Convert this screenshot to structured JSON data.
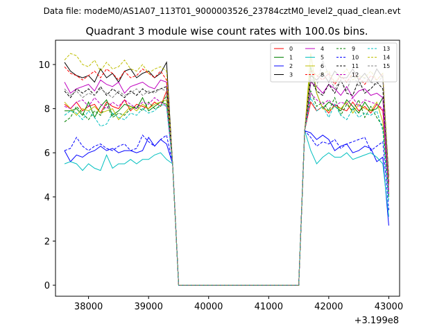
{
  "header": {
    "data_file_label": "Data file: modeM0/AS1A07_113T01_9000003526_23784cztM0_level2_quad_clean.evt"
  },
  "chart_data": {
    "type": "line",
    "title": "Quadrant 3 module wise count rates with 100.0s bins.",
    "xlabel": "",
    "ylabel": "",
    "x_offset_label": "+3.199e8",
    "xlim": [
      37450,
      43180
    ],
    "ylim": [
      -0.5,
      11.1
    ],
    "xticks": [
      38000,
      39000,
      40000,
      41000,
      42000,
      43000
    ],
    "xtick_labels": [
      "38000",
      "39000",
      "40000",
      "41000",
      "42000",
      "43000"
    ],
    "yticks": [
      0,
      2,
      4,
      6,
      8,
      10
    ],
    "ytick_labels": [
      "0",
      "2",
      "4",
      "6",
      "8",
      "10"
    ],
    "legend_position": "top-right",
    "x_before": [
      37600,
      37700,
      37800,
      37900,
      38000,
      38100,
      38200,
      38300,
      38400,
      38500,
      38600,
      38700,
      38800,
      38900,
      39000,
      39100,
      39200,
      39300
    ],
    "x_after": [
      41700,
      41800,
      41900,
      42000,
      42100,
      42200,
      42300,
      42400,
      42500,
      42600,
      42700,
      42800,
      42900,
      43000
    ],
    "gap_x": [
      39400,
      39500,
      41400,
      41500,
      41600
    ],
    "gap_values": [
      5.5,
      0,
      0,
      0,
      7.0
    ],
    "series": [
      {
        "name": "0",
        "color": "#ff0000",
        "dash": "solid",
        "before": [
          8.2,
          8.0,
          8.3,
          7.9,
          8.1,
          8.2,
          7.8,
          8.3,
          8.1,
          8.0,
          8.4,
          7.9,
          8.2,
          8.1,
          8.0,
          8.3,
          8.1,
          8.8
        ],
        "after": [
          8.3,
          7.9,
          8.1,
          7.8,
          8.2,
          8.0,
          7.9,
          8.3,
          7.9,
          8.1,
          7.8,
          8.2,
          7.9,
          4.6
        ]
      },
      {
        "name": "1",
        "color": "#008000",
        "dash": "solid",
        "before": [
          7.9,
          7.9,
          8.0,
          7.7,
          8.3,
          7.6,
          8.1,
          8.4,
          7.7,
          7.9,
          8.2,
          8.1,
          8.0,
          8.5,
          7.9,
          8.1,
          8.3,
          8.2
        ],
        "after": [
          9.9,
          8.7,
          8.0,
          8.3,
          8.1,
          7.9,
          8.4,
          8.1,
          7.8,
          8.3,
          7.9,
          8.0,
          8.5,
          4.0
        ]
      },
      {
        "name": "2",
        "color": "#0000ff",
        "dash": "solid",
        "before": [
          6.1,
          5.6,
          5.9,
          5.8,
          6.0,
          6.1,
          6.3,
          6.1,
          6.2,
          6.0,
          6.1,
          6.1,
          6.0,
          6.1,
          6.7,
          6.3,
          6.6,
          6.4
        ],
        "after": [
          6.9,
          6.6,
          6.8,
          6.6,
          6.1,
          6.3,
          6.4,
          6.0,
          6.1,
          6.3,
          6.2,
          5.6,
          5.8,
          2.7
        ]
      },
      {
        "name": "3",
        "color": "#000000",
        "dash": "solid",
        "before": [
          10.1,
          9.7,
          9.5,
          9.4,
          9.5,
          9.2,
          9.8,
          9.4,
          9.6,
          9.2,
          9.7,
          9.8,
          9.4,
          9.6,
          9.7,
          9.4,
          9.6,
          10.1
        ],
        "after": [
          9.5,
          9.3,
          9.6,
          9.2,
          9.7,
          9.4,
          9.4,
          9.8,
          9.3,
          9.6,
          9.2,
          9.8,
          9.4,
          4.9
        ]
      },
      {
        "name": "4",
        "color": "#bf00bf",
        "dash": "solid",
        "before": [
          9.2,
          8.7,
          8.9,
          9.0,
          9.1,
          8.8,
          9.3,
          9.1,
          9.0,
          9.2,
          8.7,
          9.0,
          9.1,
          9.2,
          9.0,
          8.9,
          9.3,
          9.2
        ],
        "after": [
          9.2,
          9.0,
          8.7,
          9.1,
          8.9,
          8.6,
          9.0,
          8.5,
          8.8,
          8.9,
          8.6,
          8.7,
          8.5,
          4.3
        ]
      },
      {
        "name": "5",
        "color": "#00bfbf",
        "dash": "solid",
        "before": [
          5.5,
          5.6,
          5.5,
          5.2,
          5.5,
          5.3,
          5.2,
          5.9,
          5.3,
          5.5,
          5.5,
          5.7,
          5.5,
          5.7,
          5.7,
          5.9,
          6.0,
          5.7
        ],
        "after": [
          6.1,
          5.5,
          5.8,
          6.0,
          5.8,
          5.8,
          6.0,
          5.7,
          5.8,
          5.9,
          6.0,
          5.8,
          5.5,
          3.1
        ]
      },
      {
        "name": "6",
        "color": "#bfbf00",
        "dash": "solid",
        "before": [
          8.3,
          8.0,
          7.7,
          8.0,
          7.9,
          8.1,
          7.8,
          7.9,
          8.0,
          7.5,
          7.8,
          8.1,
          7.9,
          8.2,
          8.0,
          8.2,
          8.3,
          8.4
        ],
        "after": [
          10.5,
          8.7,
          8.0,
          7.9,
          8.1,
          8.0,
          8.3,
          7.8,
          8.2,
          8.0,
          7.9,
          8.3,
          7.4,
          4.2
        ]
      },
      {
        "name": "8",
        "color": "#ff0000",
        "dash": "dash",
        "before": [
          9.9,
          9.6,
          9.5,
          9.3,
          9.5,
          9.7,
          9.4,
          9.8,
          9.6,
          9.3,
          9.7,
          9.4,
          9.5,
          9.8,
          9.6,
          9.4,
          9.7,
          9.3
        ],
        "after": [
          9.7,
          9.5,
          9.3,
          9.6,
          9.1,
          9.5,
          9.2,
          9.6,
          9.4,
          9.1,
          9.5,
          9.3,
          9.6,
          4.6
        ]
      },
      {
        "name": "9",
        "color": "#008000",
        "dash": "dash",
        "before": [
          7.4,
          7.6,
          8.1,
          7.8,
          7.5,
          7.9,
          7.7,
          8.2,
          7.6,
          7.8,
          7.7,
          8.0,
          8.1,
          7.9,
          8.3,
          8.0,
          8.1,
          8.6
        ],
        "after": [
          8.8,
          8.1,
          8.3,
          7.9,
          8.5,
          7.7,
          8.2,
          7.9,
          8.4,
          7.6,
          8.1,
          7.6,
          7.2,
          4.1
        ]
      },
      {
        "name": "10",
        "color": "#0000ff",
        "dash": "dash",
        "before": [
          6.1,
          6.2,
          6.7,
          6.3,
          6.1,
          6.3,
          6.4,
          6.2,
          6.1,
          6.3,
          6.4,
          6.1,
          6.2,
          6.8,
          6.5,
          6.3,
          6.6,
          6.8
        ],
        "after": [
          6.7,
          6.3,
          6.5,
          6.4,
          6.6,
          6.2,
          6.4,
          6.5,
          6.6,
          6.7,
          6.1,
          6.3,
          6.5,
          3.4
        ]
      },
      {
        "name": "11",
        "color": "#000000",
        "dash": "dash",
        "before": [
          8.8,
          8.5,
          8.9,
          8.7,
          8.9,
          8.6,
          9.0,
          8.6,
          8.9,
          8.7,
          8.5,
          8.8,
          8.6,
          8.9,
          8.7,
          8.8,
          8.9,
          9.0
        ],
        "after": [
          9.3,
          8.8,
          8.6,
          9.1,
          8.7,
          9.3,
          8.7,
          8.6,
          9.3,
          8.7,
          8.9,
          9.2,
          8.9,
          4.7
        ]
      },
      {
        "name": "12",
        "color": "#bf00bf",
        "dash": "dash",
        "before": [
          8.1,
          8.0,
          8.3,
          8.4,
          8.1,
          8.5,
          8.2,
          8.0,
          8.3,
          8.1,
          8.4,
          8.2,
          8.0,
          8.3,
          8.2,
          8.5,
          8.3,
          8.1
        ],
        "after": [
          8.7,
          8.4,
          8.2,
          8.4,
          8.1,
          8.3,
          8.2,
          8.5,
          8.1,
          8.4,
          8.3,
          8.2,
          8.0,
          4.1
        ]
      },
      {
        "name": "13",
        "color": "#00bfbf",
        "dash": "dash",
        "before": [
          7.7,
          7.9,
          7.8,
          7.5,
          7.9,
          7.6,
          7.2,
          7.3,
          7.8,
          7.6,
          7.5,
          7.8,
          7.7,
          8.0,
          7.8,
          7.9,
          8.2,
          8.1
        ],
        "after": [
          8.5,
          7.9,
          8.1,
          7.6,
          8.2,
          7.7,
          7.5,
          8.0,
          7.6,
          7.8,
          7.7,
          7.9,
          7.0,
          3.8
        ]
      },
      {
        "name": "14",
        "color": "#bfbf00",
        "dash": "dash",
        "before": [
          10.2,
          10.5,
          10.4,
          10.0,
          9.9,
          10.2,
          9.7,
          10.1,
          9.8,
          9.9,
          10.2,
          9.8,
          9.7,
          10.0,
          9.6,
          9.8,
          9.9,
          9.7
        ],
        "after": [
          9.8,
          9.5,
          9.6,
          9.7,
          9.2,
          9.5,
          9.8,
          9.3,
          9.5,
          9.4,
          9.7,
          9.3,
          9.6,
          4.8
        ]
      },
      {
        "name": "15",
        "color": "#808080",
        "dash": "dash",
        "before": [
          8.9,
          8.6,
          8.8,
          8.5,
          8.7,
          8.6,
          8.9,
          8.7,
          8.5,
          8.8,
          8.6,
          8.7,
          8.9,
          8.6,
          8.8,
          8.7,
          8.9,
          8.8
        ],
        "after": [
          9.4,
          9.0,
          10.2,
          9.5,
          8.9,
          9.3,
          8.8,
          9.6,
          9.0,
          9.4,
          9.2,
          9.1,
          9.5,
          4.5
        ]
      }
    ]
  }
}
